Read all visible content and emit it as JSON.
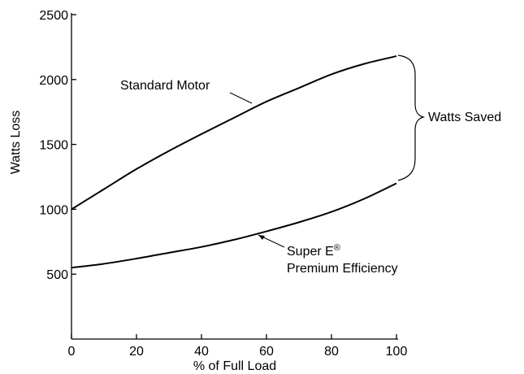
{
  "chart_data": {
    "type": "line",
    "xlabel": "% of Full Load",
    "ylabel": "Watts Loss",
    "xlim": [
      0,
      100
    ],
    "ylim": [
      0,
      2500
    ],
    "xticks": [
      0,
      20,
      40,
      60,
      80,
      100
    ],
    "yticks": [
      500,
      1000,
      1500,
      2000,
      2500
    ],
    "grid": false,
    "series": [
      {
        "name": "Standard Motor",
        "x": [
          0,
          10,
          20,
          30,
          40,
          50,
          60,
          70,
          80,
          90,
          100
        ],
        "y": [
          1000,
          1155,
          1310,
          1450,
          1580,
          1705,
          1830,
          1935,
          2040,
          2120,
          2180
        ]
      },
      {
        "name": "Super E® Premium Efficiency",
        "x": [
          0,
          10,
          20,
          30,
          40,
          50,
          60,
          70,
          80,
          90,
          100
        ],
        "y": [
          550,
          580,
          620,
          665,
          710,
          765,
          830,
          900,
          980,
          1080,
          1200
        ]
      }
    ],
    "annotations": {
      "standard_motor": "Standard Motor",
      "super_e_line1": "Super E®",
      "super_e_line2": "Premium Efficiency",
      "watts_saved": "Watts Saved"
    }
  }
}
